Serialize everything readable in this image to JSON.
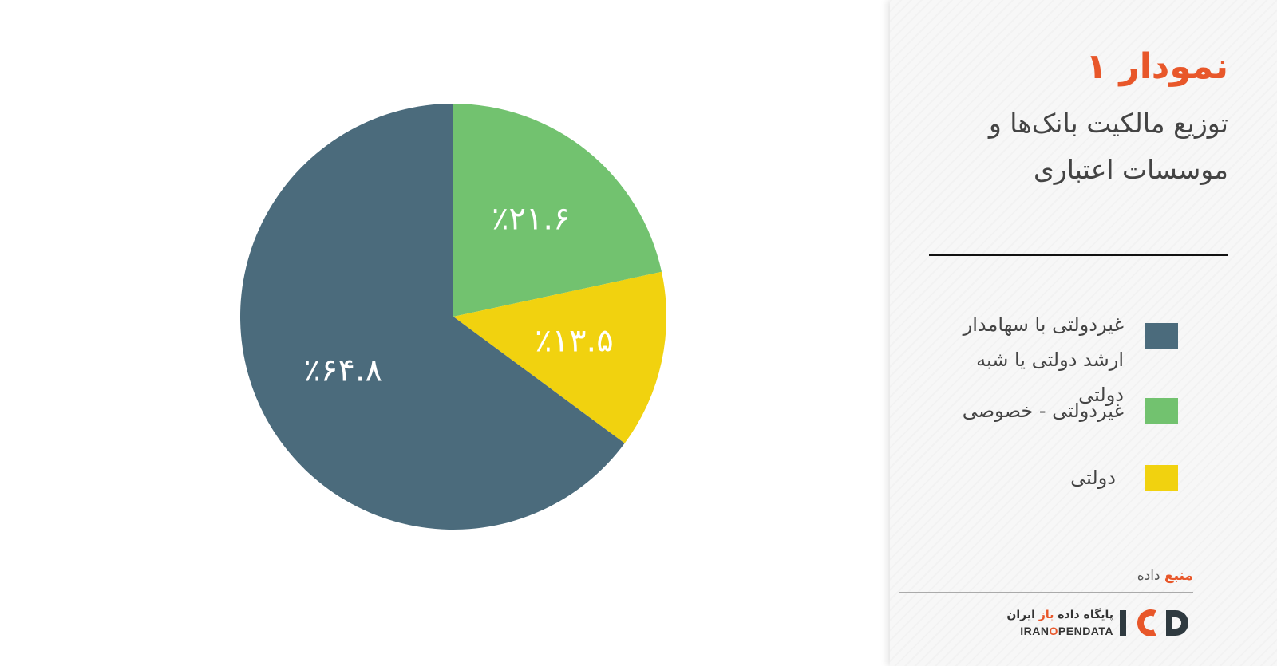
{
  "header": {
    "title": "نمودار ۱",
    "subtitle": "توزیع مالکیت بانک‌ها و موسسات اعتباری"
  },
  "chart_data": {
    "type": "pie",
    "categories": [
      "غیردولتی با سهامدار ارشد دولتی یا شبه دولتی",
      "غیردولتی - خصوصی",
      "دولتی"
    ],
    "values": [
      64.8,
      21.6,
      13.5
    ],
    "value_labels": [
      "٪۶۴.۸",
      "٪۲۱.۶",
      "٪۱۳.۵"
    ],
    "colors": [
      "#4b6b7c",
      "#72c26f",
      "#f1d20f"
    ],
    "slice_order_clockwise_from_top": [
      "غیردولتی - خصوصی",
      "دولتی",
      "غیردولتی با سهامدار ارشد دولتی یا شبه دولتی"
    ],
    "title": "نمودار ۱",
    "subtitle": "توزیع مالکیت بانک‌ها و موسسات اعتباری",
    "unit": "%",
    "legend_position": "right"
  },
  "legend": {
    "items": [
      {
        "label": "غیردولتی با سهامدار ارشد دولتی یا شبه دولتی",
        "color": "#4b6b7c"
      },
      {
        "label": "غیردولتی - خصوصی",
        "color": "#72c26f"
      },
      {
        "label": "دولتی",
        "color": "#f1d20f"
      }
    ]
  },
  "footer": {
    "source_accent": "منبع",
    "source_rest": "داده",
    "logo_fa_part1": "پایگاه داده",
    "logo_fa_accent": "باز",
    "logo_fa_part2": "ایران",
    "logo_en_part1": "IRAN",
    "logo_en_accent": "O",
    "logo_en_part2": "PENDATA",
    "logo_colors": {
      "dark": "#2f3a40",
      "accent": "#e8572a"
    }
  }
}
